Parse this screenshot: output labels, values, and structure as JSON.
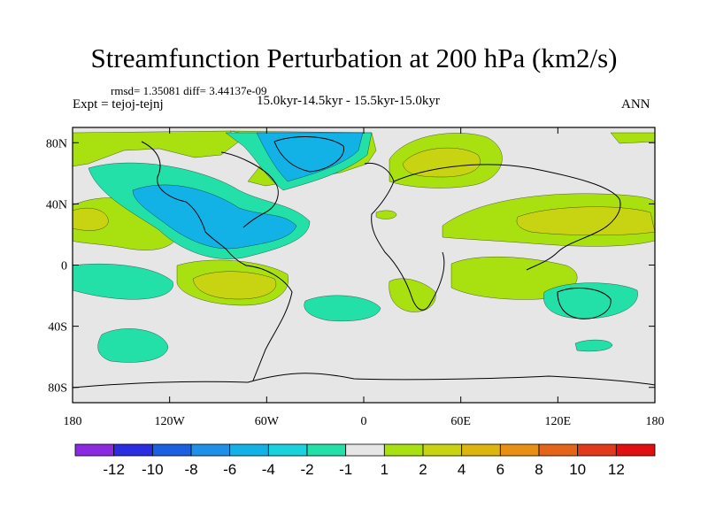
{
  "chart_data": {
    "type": "heatmap",
    "title": "Streamfunction Perturbation at 200 hPa (km2/s)",
    "stats_text": "rmsd= 1.35081 diff= 3.44137e-09",
    "left_label": "Expt = tejoj-tejnj",
    "center_label": "15.0kyr-14.5kyr - 15.5kyr-15.0kyr",
    "right_label": "ANN",
    "x_tick_labels": [
      "180",
      "120W",
      "60W",
      "0",
      "60E",
      "120E",
      "180"
    ],
    "x_tick_values": [
      -180,
      -120,
      -60,
      0,
      60,
      120,
      180
    ],
    "y_tick_labels": [
      "80N",
      "40N",
      "0",
      "40S",
      "80S"
    ],
    "y_tick_values": [
      80,
      40,
      0,
      -40,
      -80
    ],
    "xlim": [
      -180,
      180
    ],
    "ylim": [
      -90,
      90
    ],
    "colorbar": {
      "labels": [
        "-12",
        "-10",
        "-8",
        "-6",
        "-4",
        "-2",
        "-1",
        "1",
        "2",
        "4",
        "6",
        "8",
        "10",
        "12"
      ],
      "colors": [
        "#8a2be2",
        "#2c2ce0",
        "#1c5fe0",
        "#1e90e8",
        "#13b2e6",
        "#18d2dc",
        "#22e0a8",
        "#e6e6e6",
        "#a8e010",
        "#c8d412",
        "#dcb60e",
        "#e89014",
        "#e4641a",
        "#e03a1a",
        "#e01010"
      ]
    },
    "regions": [
      {
        "label": "NE Pacific / N America negative",
        "level": "-4",
        "color": "#13b2e6",
        "lon": -140,
        "lat": 60
      },
      {
        "label": "Greenland negative",
        "level": "-4",
        "color": "#13b2e6",
        "lon": -30,
        "lat": 70
      },
      {
        "label": "Central America negative",
        "level": "-4",
        "color": "#13b2e6",
        "lon": -90,
        "lat": 25
      },
      {
        "label": "Central Eurasia positive",
        "level": "4",
        "color": "#c8d412",
        "lon": 60,
        "lat": 55
      },
      {
        "label": "Asia / W Pacific positive",
        "level": "4",
        "color": "#c8d412",
        "lon": 110,
        "lat": 30
      },
      {
        "label": "SE Pacific positive",
        "level": "4",
        "color": "#c8d412",
        "lon": -80,
        "lat": -15
      },
      {
        "label": "Subtropical Pacific positive",
        "level": "4",
        "color": "#c8d412",
        "lon": -170,
        "lat": 27
      },
      {
        "label": "S Indian Ocean positive",
        "level": "2",
        "color": "#a8e010",
        "lon": 60,
        "lat": -10
      },
      {
        "label": "Southern Ocean negative",
        "level": "-1",
        "color": "#22e0a8",
        "lon": -150,
        "lat": -55
      },
      {
        "label": "Australia negative",
        "level": "-1",
        "color": "#22e0a8",
        "lon": 130,
        "lat": -25
      }
    ]
  }
}
